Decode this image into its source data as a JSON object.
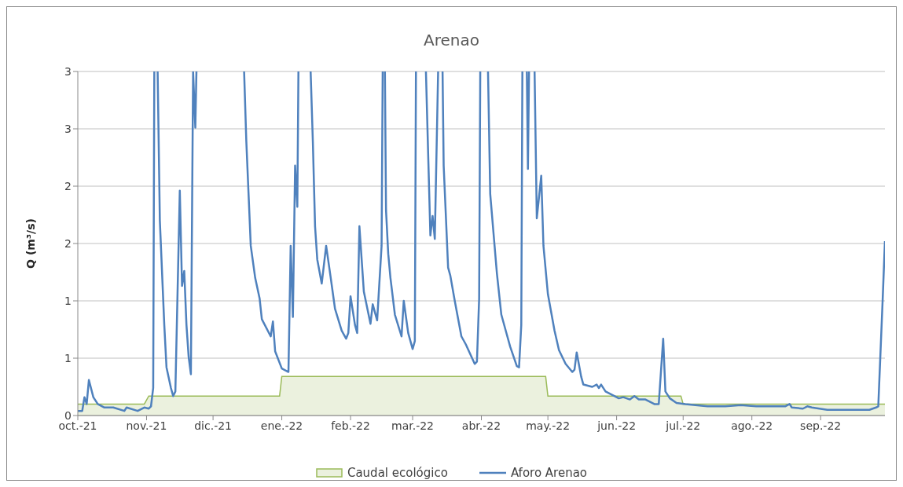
{
  "chart_data": {
    "type": "line",
    "title": "Arenao",
    "ylabel": "Q (m³/s)",
    "xlim": [
      "2021-10-01",
      "2022-09-30"
    ],
    "xticks": [
      {
        "value": "2021-10-01",
        "label": "oct.-21"
      },
      {
        "value": "2021-11-01",
        "label": "nov.-21"
      },
      {
        "value": "2021-12-01",
        "label": "dic.-21"
      },
      {
        "value": "2022-01-01",
        "label": "ene.-22"
      },
      {
        "value": "2022-02-01",
        "label": "feb.-22"
      },
      {
        "value": "2022-03-01",
        "label": "mar.-22"
      },
      {
        "value": "2022-04-01",
        "label": "abr.-22"
      },
      {
        "value": "2022-05-01",
        "label": "may.-22"
      },
      {
        "value": "2022-06-01",
        "label": "jun.-22"
      },
      {
        "value": "2022-07-01",
        "label": "jul.-22"
      },
      {
        "value": "2022-08-01",
        "label": "ago.-22"
      },
      {
        "value": "2022-09-01",
        "label": "sep.-22"
      }
    ],
    "ylim": [
      0,
      3
    ],
    "yticks": [
      0,
      {
        "value": 0.5,
        "label": "1"
      },
      1,
      {
        "value": 1.5,
        "label": "2"
      },
      2,
      {
        "value": 2.5,
        "label": "3"
      },
      3
    ],
    "grid": "y",
    "legend": "bottom",
    "marker": "none",
    "line_style": "solid",
    "series": [
      {
        "name": "Caudal ecológico",
        "type": "area",
        "color": "#9bbb59",
        "x": [
          "2021-10-01",
          "2021-10-31",
          "2021-11-02",
          "2021-12-31",
          "2022-01-01",
          "2022-04-30",
          "2022-05-01",
          "2022-06-30",
          "2022-07-01",
          "2022-09-30"
        ],
        "values": [
          0.1,
          0.1,
          0.17,
          0.17,
          0.34,
          0.34,
          0.17,
          0.17,
          0.1,
          0.1
        ]
      },
      {
        "name": "Aforo Arenao",
        "color": "#4f81bd",
        "x": [
          "2021-10-01",
          "2021-10-03",
          "2021-10-04",
          "2021-10-05",
          "2021-10-06",
          "2021-10-08",
          "2021-10-10",
          "2021-10-13",
          "2021-10-17",
          "2021-10-22",
          "2021-10-23",
          "2021-10-28",
          "2021-10-31",
          "2021-11-02",
          "2021-11-03",
          "2021-11-04",
          "2021-11-04T12:00",
          "2021-11-05",
          "2021-11-06",
          "2021-11-07",
          "2021-11-09",
          "2021-11-10",
          "2021-11-12",
          "2021-11-13",
          "2021-11-14",
          "2021-11-16",
          "2021-11-17",
          "2021-11-18",
          "2021-11-19",
          "2021-11-20",
          "2021-11-21",
          "2021-11-22",
          "2021-11-23",
          "2021-11-23T12:00",
          "2021-11-24",
          "2021-12-14",
          "2021-12-15",
          "2021-12-16",
          "2021-12-18",
          "2021-12-20",
          "2021-12-22",
          "2021-12-23",
          "2021-12-27",
          "2021-12-28",
          "2021-12-29",
          "2022-01-01",
          "2022-01-04",
          "2022-01-05",
          "2022-01-06",
          "2022-01-07",
          "2022-01-08",
          "2022-01-08T12:00",
          "2022-01-09",
          "2022-01-13",
          "2022-01-14",
          "2022-01-15",
          "2022-01-16",
          "2022-01-17",
          "2022-01-19",
          "2022-01-21",
          "2022-01-23",
          "2022-01-25",
          "2022-01-28",
          "2022-01-30",
          "2022-01-31",
          "2022-02-01",
          "2022-02-03",
          "2022-02-04",
          "2022-02-05",
          "2022-02-07",
          "2022-02-10",
          "2022-02-11",
          "2022-02-13",
          "2022-02-15",
          "2022-02-15T12:00",
          "2022-02-16",
          "2022-02-16T12:00",
          "2022-02-17",
          "2022-02-18",
          "2022-02-19",
          "2022-02-21",
          "2022-02-24",
          "2022-02-25",
          "2022-02-27",
          "2022-03-01",
          "2022-03-02",
          "2022-03-02T12:00",
          "2022-03-03",
          "2022-03-06",
          "2022-03-07",
          "2022-03-09",
          "2022-03-10",
          "2022-03-11",
          "2022-03-12T12:00",
          "2022-03-13",
          "2022-03-14T12:00",
          "2022-03-15",
          "2022-03-17",
          "2022-03-18",
          "2022-03-20",
          "2022-03-23",
          "2022-03-25",
          "2022-03-29",
          "2022-03-30",
          "2022-03-31",
          "2022-03-31T12:00",
          "2022-04-01",
          "2022-04-03",
          "2022-04-04",
          "2022-04-05",
          "2022-04-08",
          "2022-04-10",
          "2022-04-12",
          "2022-04-14",
          "2022-04-17",
          "2022-04-18",
          "2022-04-19",
          "2022-04-19T12:00",
          "2022-04-20",
          "2022-04-21T12:00",
          "2022-04-22",
          "2022-04-22T12:00",
          "2022-04-23",
          "2022-04-25",
          "2022-04-26",
          "2022-04-28",
          "2022-04-29",
          "2022-05-01",
          "2022-05-04",
          "2022-05-06",
          "2022-05-09",
          "2022-05-12",
          "2022-05-13",
          "2022-05-14",
          "2022-05-16",
          "2022-05-17",
          "2022-05-21",
          "2022-05-23",
          "2022-05-24",
          "2022-05-25",
          "2022-05-27",
          "2022-06-02",
          "2022-06-04",
          "2022-06-07",
          "2022-06-09",
          "2022-06-11",
          "2022-06-14",
          "2022-06-18",
          "2022-06-20",
          "2022-06-22",
          "2022-06-23",
          "2022-06-25",
          "2022-06-28",
          "2022-07-02",
          "2022-07-12",
          "2022-07-20",
          "2022-07-27",
          "2022-08-03",
          "2022-08-09",
          "2022-08-16",
          "2022-08-18",
          "2022-08-19",
          "2022-08-24",
          "2022-08-26",
          "2022-08-28",
          "2022-09-04",
          "2022-09-12",
          "2022-09-18",
          "2022-09-23",
          "2022-09-26",
          "2022-09-27",
          "2022-09-29",
          "2022-09-30"
        ],
        "values": [
          0.04,
          0.04,
          0.16,
          0.1,
          0.31,
          0.16,
          0.1,
          0.07,
          0.07,
          0.04,
          0.07,
          0.04,
          0.07,
          0.06,
          0.08,
          0.24,
          3,
          null,
          3,
          1.7,
          0.79,
          0.42,
          0.24,
          0.17,
          0.21,
          1.96,
          1.13,
          1.26,
          0.79,
          0.51,
          0.36,
          3,
          2.51,
          3,
          null,
          null,
          3,
          2.39,
          1.48,
          1.2,
          1.02,
          0.84,
          0.69,
          0.82,
          0.56,
          0.41,
          0.38,
          1.48,
          0.86,
          2.18,
          1.82,
          3,
          null,
          null,
          3,
          2.39,
          1.65,
          1.36,
          1.15,
          1.48,
          1.21,
          0.93,
          0.74,
          0.67,
          0.72,
          1.04,
          0.79,
          0.72,
          1.65,
          1.08,
          0.8,
          0.97,
          0.83,
          1.48,
          3,
          null,
          3,
          1.79,
          1.41,
          1.2,
          0.88,
          0.69,
          1.0,
          0.72,
          0.58,
          0.65,
          3,
          null,
          null,
          3,
          1.57,
          1.74,
          1.54,
          3,
          null,
          3,
          2.18,
          1.29,
          1.22,
          1.0,
          0.69,
          0.62,
          0.45,
          0.47,
          1.02,
          3,
          null,
          null,
          3,
          1.93,
          1.24,
          0.88,
          0.74,
          0.6,
          0.43,
          0.42,
          0.79,
          3,
          null,
          3,
          2.15,
          3,
          null,
          3,
          1.72,
          2.09,
          1.48,
          1.06,
          0.74,
          0.57,
          0.45,
          0.38,
          0.4,
          0.55,
          0.34,
          0.27,
          0.25,
          0.27,
          0.24,
          0.27,
          0.21,
          0.15,
          0.16,
          0.14,
          0.17,
          0.14,
          0.14,
          0.1,
          0.1,
          0.67,
          0.21,
          0.15,
          0.11,
          0.1,
          0.08,
          0.08,
          0.09,
          0.08,
          0.08,
          0.08,
          0.1,
          0.07,
          0.06,
          0.08,
          0.07,
          0.05,
          0.05,
          0.05,
          0.05,
          0.07,
          0.08,
          1.02,
          1.52
        ]
      }
    ]
  }
}
